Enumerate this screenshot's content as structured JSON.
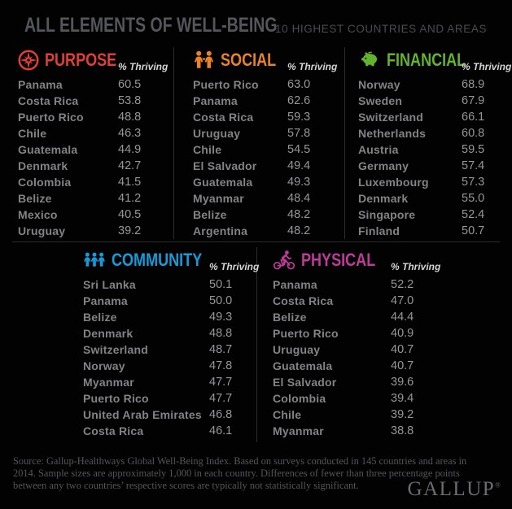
{
  "header": {
    "title": "ALL ELEMENTS OF WELL-BEING",
    "subtitle": "10 HIGHEST COUNTRIES AND AREAS"
  },
  "thriving_label": "% Thriving",
  "categories": [
    {
      "id": "purpose",
      "label": "PURPOSE",
      "icon": "compass-icon",
      "color": "#e03e38",
      "rows": [
        {
          "country": "Panama",
          "value": "60.5"
        },
        {
          "country": "Costa Rica",
          "value": "53.8"
        },
        {
          "country": "Puerto Rico",
          "value": "48.8"
        },
        {
          "country": "Chile",
          "value": "46.3"
        },
        {
          "country": "Guatemala",
          "value": "44.9"
        },
        {
          "country": "Denmark",
          "value": "42.7"
        },
        {
          "country": "Colombia",
          "value": "41.5"
        },
        {
          "country": "Belize",
          "value": "41.2"
        },
        {
          "country": "Mexico",
          "value": "40.5"
        },
        {
          "country": "Uruguay",
          "value": "39.2"
        }
      ]
    },
    {
      "id": "social",
      "label": "SOCIAL",
      "icon": "people-pair-heart-icon",
      "color": "#e88329",
      "rows": [
        {
          "country": "Puerto Rico",
          "value": "63.0"
        },
        {
          "country": "Panama",
          "value": "62.6"
        },
        {
          "country": "Costa Rica",
          "value": "59.3"
        },
        {
          "country": "Uruguay",
          "value": "57.8"
        },
        {
          "country": "Chile",
          "value": "54.5"
        },
        {
          "country": "El Salvador",
          "value": "49.4"
        },
        {
          "country": "Guatemala",
          "value": "49.3"
        },
        {
          "country": "Myanmar",
          "value": "48.4"
        },
        {
          "country": "Belize",
          "value": "48.2"
        },
        {
          "country": "Argentina",
          "value": "48.2"
        }
      ]
    },
    {
      "id": "financial",
      "label": "FINANCIAL",
      "icon": "piggy-bank-icon",
      "color": "#62b32d",
      "rows": [
        {
          "country": "Norway",
          "value": "68.9"
        },
        {
          "country": "Sweden",
          "value": "67.9"
        },
        {
          "country": "Switzerland",
          "value": "66.1"
        },
        {
          "country": "Netherlands",
          "value": "60.8"
        },
        {
          "country": "Austria",
          "value": "59.5"
        },
        {
          "country": "Germany",
          "value": "57.4"
        },
        {
          "country": "Luxembourg",
          "value": "57.3"
        },
        {
          "country": "Denmark",
          "value": "55.0"
        },
        {
          "country": "Singapore",
          "value": "52.4"
        },
        {
          "country": "Finland",
          "value": "50.7"
        }
      ]
    },
    {
      "id": "community",
      "label": "COMMUNITY",
      "icon": "people-group-icon",
      "color": "#149bd8",
      "rows": [
        {
          "country": "Sri Lanka",
          "value": "50.1"
        },
        {
          "country": "Panama",
          "value": "50.0"
        },
        {
          "country": "Belize",
          "value": "49.3"
        },
        {
          "country": "Denmark",
          "value": "48.8"
        },
        {
          "country": "Switzerland",
          "value": "48.7"
        },
        {
          "country": "Norway",
          "value": "47.8"
        },
        {
          "country": "Myanmar",
          "value": "47.7"
        },
        {
          "country": "Puerto Rico",
          "value": "47.7"
        },
        {
          "country": "United Arab Emirates",
          "value": "46.8"
        },
        {
          "country": "Costa Rica",
          "value": "46.1"
        }
      ]
    },
    {
      "id": "physical",
      "label": "PHYSICAL",
      "icon": "cyclist-icon",
      "color": "#bf3b9a",
      "rows": [
        {
          "country": "Panama",
          "value": "52.2"
        },
        {
          "country": "Costa Rica",
          "value": "47.0"
        },
        {
          "country": "Belize",
          "value": "44.4"
        },
        {
          "country": "Puerto Rico",
          "value": "40.9"
        },
        {
          "country": "Uruguay",
          "value": "40.7"
        },
        {
          "country": "Guatemala",
          "value": "40.7"
        },
        {
          "country": "El Salvador",
          "value": "39.6"
        },
        {
          "country": "Colombia",
          "value": "39.4"
        },
        {
          "country": "Chile",
          "value": "39.2"
        },
        {
          "country": "Myanmar",
          "value": "38.8"
        }
      ]
    }
  ],
  "footer": {
    "source": "Source: Gallup-Healthways Global Well-Being Index. Based on surveys conducted in 145 countries and areas in 2014. Sample sizes are approximately 1,000 in each country. Differences of fewer than three percentage points between any two countries’ respective scores are typically not statistically significant.",
    "logo": "GALLUP",
    "logo_mark": "®"
  },
  "chart_data": {
    "type": "table",
    "title": "ALL ELEMENTS OF WELL-BEING",
    "subtitle": "10 HIGHEST COUNTRIES AND AREAS",
    "value_label": "% Thriving",
    "tables": [
      {
        "element": "Purpose",
        "rows": [
          [
            "Panama",
            60.5
          ],
          [
            "Costa Rica",
            53.8
          ],
          [
            "Puerto Rico",
            48.8
          ],
          [
            "Chile",
            46.3
          ],
          [
            "Guatemala",
            44.9
          ],
          [
            "Denmark",
            42.7
          ],
          [
            "Colombia",
            41.5
          ],
          [
            "Belize",
            41.2
          ],
          [
            "Mexico",
            40.5
          ],
          [
            "Uruguay",
            39.2
          ]
        ]
      },
      {
        "element": "Social",
        "rows": [
          [
            "Puerto Rico",
            63.0
          ],
          [
            "Panama",
            62.6
          ],
          [
            "Costa Rica",
            59.3
          ],
          [
            "Uruguay",
            57.8
          ],
          [
            "Chile",
            54.5
          ],
          [
            "El Salvador",
            49.4
          ],
          [
            "Guatemala",
            49.3
          ],
          [
            "Myanmar",
            48.4
          ],
          [
            "Belize",
            48.2
          ],
          [
            "Argentina",
            48.2
          ]
        ]
      },
      {
        "element": "Financial",
        "rows": [
          [
            "Norway",
            68.9
          ],
          [
            "Sweden",
            67.9
          ],
          [
            "Switzerland",
            66.1
          ],
          [
            "Netherlands",
            60.8
          ],
          [
            "Austria",
            59.5
          ],
          [
            "Germany",
            57.4
          ],
          [
            "Luxembourg",
            57.3
          ],
          [
            "Denmark",
            55.0
          ],
          [
            "Singapore",
            52.4
          ],
          [
            "Finland",
            50.7
          ]
        ]
      },
      {
        "element": "Community",
        "rows": [
          [
            "Sri Lanka",
            50.1
          ],
          [
            "Panama",
            50.0
          ],
          [
            "Belize",
            49.3
          ],
          [
            "Denmark",
            48.8
          ],
          [
            "Switzerland",
            48.7
          ],
          [
            "Norway",
            47.8
          ],
          [
            "Myanmar",
            47.7
          ],
          [
            "Puerto Rico",
            47.7
          ],
          [
            "United Arab Emirates",
            46.8
          ],
          [
            "Costa Rica",
            46.1
          ]
        ]
      },
      {
        "element": "Physical",
        "rows": [
          [
            "Panama",
            52.2
          ],
          [
            "Costa Rica",
            47.0
          ],
          [
            "Belize",
            44.4
          ],
          [
            "Puerto Rico",
            40.9
          ],
          [
            "Uruguay",
            40.7
          ],
          [
            "Guatemala",
            40.7
          ],
          [
            "El Salvador",
            39.6
          ],
          [
            "Colombia",
            39.4
          ],
          [
            "Chile",
            39.2
          ],
          [
            "Myanmar",
            38.8
          ]
        ]
      }
    ]
  }
}
